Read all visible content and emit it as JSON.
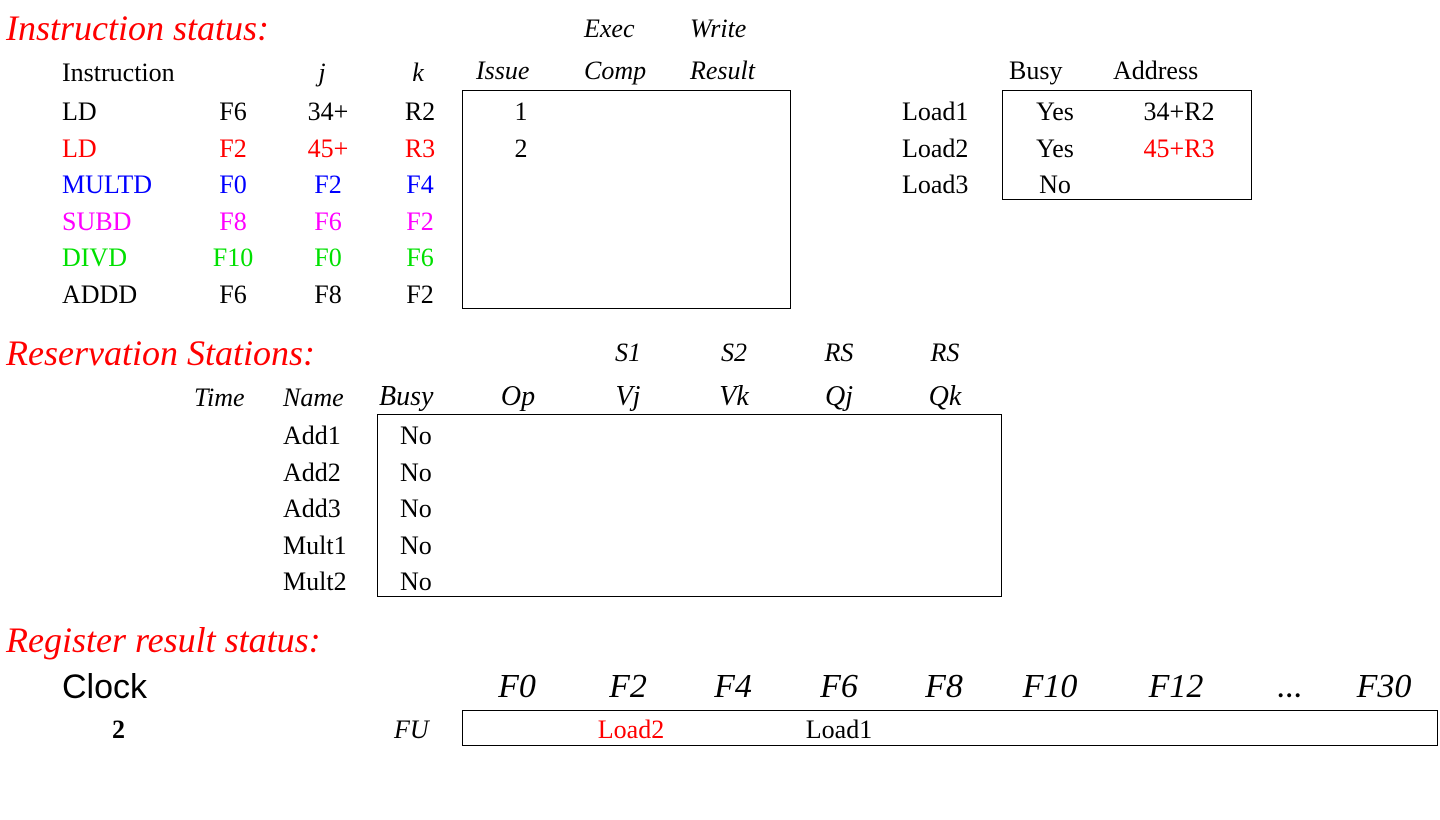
{
  "colors": {
    "black": "#000000",
    "red": "#ff0000",
    "blue": "#0000ff",
    "magenta": "#ff00ff",
    "green": "#00e000"
  },
  "instruction_status": {
    "title": "Instruction status:",
    "header_top": {
      "exec": "Exec",
      "write": "Write"
    },
    "headers": {
      "instruction": "Instruction",
      "j": "j",
      "k": "k",
      "issue": "Issue",
      "comp": "Comp",
      "result": "Result"
    },
    "rows": [
      {
        "op": "LD",
        "dest": "F6",
        "j": "34+",
        "k": "R2",
        "issue": "1",
        "comp": "",
        "result": "",
        "color": "#000000"
      },
      {
        "op": "LD",
        "dest": "F2",
        "j": "45+",
        "k": "R3",
        "issue": "2",
        "comp": "",
        "result": "",
        "color": "#ff0000"
      },
      {
        "op": "MULTD",
        "dest": "F0",
        "j": "F2",
        "k": "F4",
        "issue": "",
        "comp": "",
        "result": "",
        "color": "#0000ff"
      },
      {
        "op": "SUBD",
        "dest": "F8",
        "j": "F6",
        "k": "F2",
        "issue": "",
        "comp": "",
        "result": "",
        "color": "#ff00ff"
      },
      {
        "op": "DIVD",
        "dest": "F10",
        "j": "F0",
        "k": "F6",
        "issue": "",
        "comp": "",
        "result": "",
        "color": "#00e000"
      },
      {
        "op": "ADDD",
        "dest": "F6",
        "j": "F8",
        "k": "F2",
        "issue": "",
        "comp": "",
        "result": "",
        "color": "#000000"
      }
    ]
  },
  "load_buffers": {
    "headers": {
      "busy": "Busy",
      "address": "Address"
    },
    "rows": [
      {
        "name": "Load1",
        "busy": "Yes",
        "address": "34+R2",
        "addr_color": "#000000"
      },
      {
        "name": "Load2",
        "busy": "Yes",
        "address": "45+R3",
        "addr_color": "#ff0000"
      },
      {
        "name": "Load3",
        "busy": "No",
        "address": "",
        "addr_color": "#000000"
      }
    ]
  },
  "reservation_stations": {
    "title": "Reservation Stations:",
    "header_top": {
      "s1": "S1",
      "s2": "S2",
      "rs1": "RS",
      "rs2": "RS"
    },
    "headers": {
      "time": "Time",
      "name": "Name",
      "busy": "Busy",
      "op": "Op",
      "vj": "Vj",
      "vk": "Vk",
      "qj": "Qj",
      "qk": "Qk"
    },
    "rows": [
      {
        "name": "Add1",
        "busy": "No"
      },
      {
        "name": "Add2",
        "busy": "No"
      },
      {
        "name": "Add3",
        "busy": "No"
      },
      {
        "name": "Mult1",
        "busy": "No"
      },
      {
        "name": "Mult2",
        "busy": "No"
      }
    ]
  },
  "register_status": {
    "title": "Register result status:",
    "clock_label": "Clock",
    "clock_value": "2",
    "fu_label": "FU",
    "registers": [
      "F0",
      "F2",
      "F4",
      "F6",
      "F8",
      "F10",
      "F12",
      "...",
      "F30"
    ],
    "fu_values": [
      "",
      "Load2",
      "",
      "Load1",
      "",
      "",
      "",
      "",
      ""
    ],
    "fu_colors": [
      "#000000",
      "#ff0000",
      "#000000",
      "#000000",
      "#000000",
      "#000000",
      "#000000",
      "#000000",
      "#000000"
    ]
  }
}
